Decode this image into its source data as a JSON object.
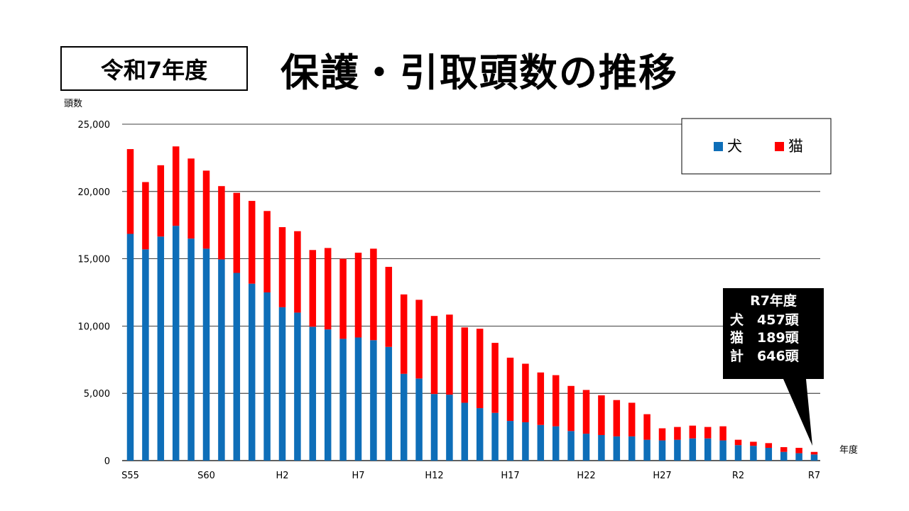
{
  "header": {
    "badge": "令和7年度",
    "title": "保護・引取頭数の推移"
  },
  "colors": {
    "dog": "#0E6EB8",
    "cat": "#FF0000",
    "gridline": "#000000"
  },
  "chart_data": {
    "type": "bar",
    "stacked": true,
    "ylabel": "頭数",
    "xlabel": "年度",
    "ylim": [
      0,
      25000
    ],
    "yticks": [
      "0",
      "5,000",
      "10,000",
      "15,000",
      "20,000",
      "25,000"
    ],
    "xtick_labels": [
      {
        "index": 0,
        "label": "S55"
      },
      {
        "index": 5,
        "label": "S60"
      },
      {
        "index": 10,
        "label": "H2"
      },
      {
        "index": 15,
        "label": "H7"
      },
      {
        "index": 20,
        "label": "H12"
      },
      {
        "index": 25,
        "label": "H17"
      },
      {
        "index": 30,
        "label": "H22"
      },
      {
        "index": 35,
        "label": "H27"
      },
      {
        "index": 40,
        "label": "R2"
      },
      {
        "index": 45,
        "label": "R7"
      }
    ],
    "legend": {
      "position": "top-right",
      "entries": [
        "犬",
        "猫"
      ]
    },
    "grid": true,
    "series": [
      {
        "name": "犬",
        "values": [
          16850,
          15700,
          16650,
          17450,
          16500,
          15750,
          14950,
          13950,
          13150,
          12500,
          11400,
          11000,
          9950,
          9750,
          9050,
          9150,
          8950,
          8450,
          6450,
          6100,
          4950,
          4900,
          4300,
          3900,
          3550,
          2950,
          2850,
          2650,
          2550,
          2200,
          2000,
          1900,
          1800,
          1800,
          1550,
          1500,
          1550,
          1650,
          1650,
          1500,
          1150,
          1100,
          950,
          650,
          550,
          457
        ]
      },
      {
        "name": "猫",
        "values": [
          6300,
          5000,
          5300,
          5900,
          5950,
          5800,
          5450,
          5950,
          6150,
          6050,
          5950,
          6050,
          5700,
          6050,
          5950,
          6300,
          6800,
          5950,
          5900,
          5850,
          5800,
          5950,
          5600,
          5900,
          5200,
          4700,
          4350,
          3900,
          3800,
          3350,
          3250,
          2950,
          2700,
          2500,
          1900,
          900,
          950,
          950,
          850,
          1050,
          400,
          300,
          350,
          350,
          400,
          189
        ]
      }
    ],
    "annotation": {
      "title": "R7年度",
      "lines": [
        "犬　457頭",
        "猫　189頭",
        "計　646頭"
      ]
    }
  }
}
